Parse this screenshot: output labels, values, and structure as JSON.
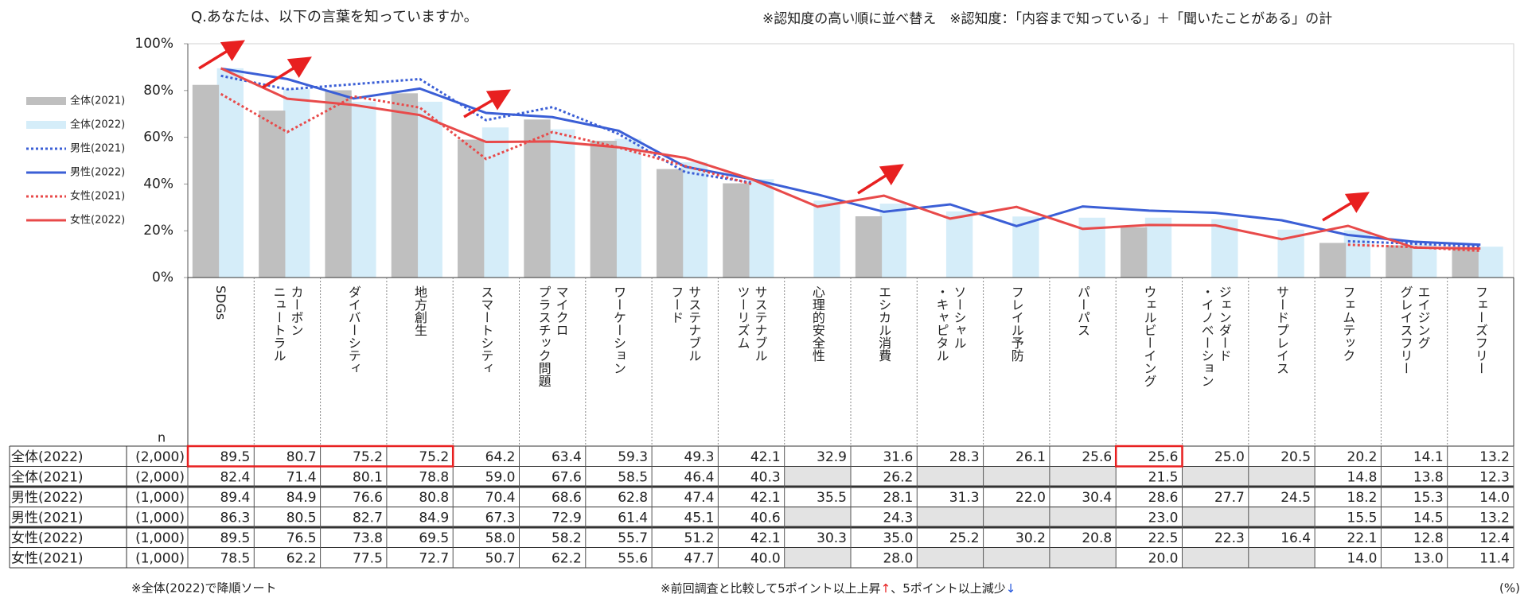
{
  "chart_data": {
    "type": "bar-line",
    "title": "Q.あなたは、以下の言葉を知っていますか。",
    "subtitle": "※認知度の高い順に並べ替え　※認知度：「内容まで知っている」＋「聞いたことがある」の計",
    "n_label": "n",
    "unit": "(%)",
    "note_left": "※全体(2022)で降順ソート",
    "note_right": [
      "※前回調査と比較して5ポイント以上上昇",
      "↑",
      "、5ポイント以上減少",
      "↓"
    ],
    "categories": [
      [
        "SDGs"
      ],
      [
        "カーボン",
        "ニュートラル"
      ],
      [
        "ダイバーシティ"
      ],
      [
        "地方創生"
      ],
      [
        "スマートシティ"
      ],
      [
        "マイクロ",
        "プラスチック問題"
      ],
      [
        "ワーケーション"
      ],
      [
        "サステナブル",
        "フード"
      ],
      [
        "サステナブル",
        "ツーリズム"
      ],
      [
        "心理的安全性"
      ],
      [
        "エシカル消費"
      ],
      [
        "ソーシャル",
        "・キャピタル"
      ],
      [
        "フレイル予防"
      ],
      [
        "パーパス"
      ],
      [
        "ウェルビーイング"
      ],
      [
        "ジェンダード",
        "・イノベーション"
      ],
      [
        "サードプレイス"
      ],
      [
        "フェムテック"
      ],
      [
        "エイジング",
        "グレイスフリー"
      ],
      [
        "フェーズフリー"
      ]
    ],
    "ylim": [
      0,
      100
    ],
    "yticks": [
      {
        "value": 0,
        "label": "0%"
      },
      {
        "value": 20,
        "label": "20%"
      },
      {
        "value": 40,
        "label": "40%"
      },
      {
        "value": 60,
        "label": "60%"
      },
      {
        "value": 80,
        "label": "80%"
      },
      {
        "value": 100,
        "label": "100%"
      }
    ],
    "grid": false,
    "series": [
      {
        "name": "全体(2021)",
        "kind": "bar",
        "color": "#bfbfbf",
        "n": "(2,000)",
        "values": [
          82.4,
          71.4,
          80.1,
          78.8,
          59.0,
          67.6,
          58.5,
          46.4,
          40.3,
          null,
          26.2,
          null,
          null,
          null,
          21.5,
          null,
          null,
          14.8,
          13.8,
          12.3
        ],
        "value_labels": [
          "82.4",
          "71.4",
          "80.1",
          "78.8",
          "59.0",
          "67.6",
          "58.5",
          "46.4",
          "40.3",
          null,
          "26.2",
          null,
          null,
          null,
          "21.5",
          null,
          null,
          "14.8",
          "13.8",
          "12.3"
        ]
      },
      {
        "name": "全体(2022)",
        "kind": "bar",
        "color": "#d5edf9",
        "n": "(2,000)",
        "values": [
          89.5,
          80.7,
          75.2,
          75.2,
          64.2,
          63.4,
          59.3,
          49.3,
          42.1,
          32.9,
          31.6,
          28.3,
          26.1,
          25.6,
          25.6,
          25.0,
          20.5,
          20.2,
          14.1,
          13.2
        ],
        "value_labels": [
          "89.5",
          "80.7",
          "75.2",
          "75.2",
          "64.2",
          "63.4",
          "59.3",
          "49.3",
          "42.1",
          "32.9",
          "31.6",
          "28.3",
          "26.1",
          "25.6",
          "25.6",
          "25.0",
          "20.5",
          "20.2",
          "14.1",
          "13.2"
        ]
      },
      {
        "name": "男性(2021)",
        "kind": "line",
        "dash": true,
        "color": "#3b5fd6",
        "n": "(1,000)",
        "values": [
          86.3,
          80.5,
          82.7,
          84.9,
          67.3,
          72.9,
          61.4,
          45.1,
          40.6,
          null,
          24.3,
          null,
          null,
          null,
          23.0,
          null,
          null,
          15.5,
          14.5,
          13.2
        ],
        "value_labels": [
          "86.3",
          "80.5",
          "82.7",
          "84.9",
          "67.3",
          "72.9",
          "61.4",
          "45.1",
          "40.6",
          null,
          "24.3",
          null,
          null,
          null,
          "23.0",
          null,
          null,
          "15.5",
          "14.5",
          "13.2"
        ]
      },
      {
        "name": "男性(2022)",
        "kind": "line",
        "dash": false,
        "color": "#3b5fd6",
        "n": "(1,000)",
        "values": [
          89.4,
          84.9,
          76.6,
          80.8,
          70.4,
          68.6,
          62.8,
          47.4,
          42.1,
          35.5,
          28.1,
          31.3,
          22.0,
          30.4,
          28.6,
          27.7,
          24.5,
          18.2,
          15.3,
          14.0
        ],
        "value_labels": [
          "89.4",
          "84.9",
          "76.6",
          "80.8",
          "70.4",
          "68.6",
          "62.8",
          "47.4",
          "42.1",
          "35.5",
          "28.1",
          "31.3",
          "22.0",
          "30.4",
          "28.6",
          "27.7",
          "24.5",
          "18.2",
          "15.3",
          "14.0"
        ]
      },
      {
        "name": "女性(2021)",
        "kind": "line",
        "dash": true,
        "color": "#e84a4a",
        "n": "(1,000)",
        "values": [
          78.5,
          62.2,
          77.5,
          72.7,
          50.7,
          62.2,
          55.6,
          47.7,
          40.0,
          null,
          28.0,
          null,
          null,
          null,
          20.0,
          null,
          null,
          14.0,
          13.0,
          11.4
        ],
        "value_labels": [
          "78.5",
          "62.2",
          "77.5",
          "72.7",
          "50.7",
          "62.2",
          "55.6",
          "47.7",
          "40.0",
          null,
          "28.0",
          null,
          null,
          null,
          "20.0",
          null,
          null,
          "14.0",
          "13.0",
          "11.4"
        ]
      },
      {
        "name": "女性(2022)",
        "kind": "line",
        "dash": false,
        "color": "#e84a4a",
        "n": "(1,000)",
        "values": [
          89.5,
          76.5,
          73.8,
          69.5,
          58.0,
          58.2,
          55.7,
          51.2,
          42.1,
          30.3,
          35.0,
          25.2,
          30.2,
          20.8,
          22.5,
          22.3,
          16.4,
          22.1,
          12.8,
          12.4
        ],
        "value_labels": [
          "89.5",
          "76.5",
          "73.8",
          "69.5",
          "58.0",
          "58.2",
          "55.7",
          "51.2",
          "42.1",
          "30.3",
          "35.0",
          "25.2",
          "30.2",
          "20.8",
          "22.5",
          "22.3",
          "16.4",
          "22.1",
          "12.8",
          "12.4"
        ]
      }
    ]
  }
}
